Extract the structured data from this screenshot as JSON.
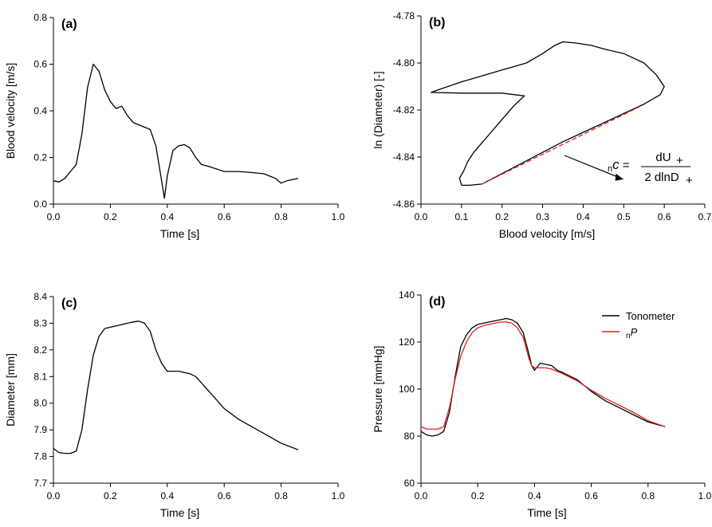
{
  "chart_data": [
    {
      "id": "a",
      "type": "line",
      "panel_label": "(a)",
      "xlabel": "Time [s]",
      "ylabel": "Blood velocity [m/s]",
      "xlim": [
        0,
        1.0
      ],
      "ylim": [
        0,
        0.8
      ],
      "xticks": [
        0.0,
        0.2,
        0.4,
        0.6,
        0.8,
        1.0
      ],
      "xtick_labels": [
        "0.0",
        "0.2",
        "0.4",
        "0.6",
        "0.8",
        "1.0"
      ],
      "yticks": [
        0.0,
        0.2,
        0.4,
        0.6,
        0.8
      ],
      "ytick_labels": [
        "0.0",
        "0.2",
        "0.4",
        "0.6",
        "0.8"
      ],
      "series": [
        {
          "color": "#000000",
          "x": [
            0.0,
            0.02,
            0.04,
            0.06,
            0.08,
            0.1,
            0.12,
            0.14,
            0.16,
            0.18,
            0.2,
            0.22,
            0.24,
            0.26,
            0.28,
            0.3,
            0.32,
            0.34,
            0.36,
            0.38,
            0.39,
            0.4,
            0.42,
            0.44,
            0.46,
            0.48,
            0.5,
            0.52,
            0.55,
            0.6,
            0.65,
            0.7,
            0.74,
            0.76,
            0.78,
            0.8,
            0.82,
            0.84,
            0.86
          ],
          "y": [
            0.1,
            0.095,
            0.11,
            0.14,
            0.17,
            0.3,
            0.5,
            0.6,
            0.57,
            0.49,
            0.44,
            0.41,
            0.42,
            0.38,
            0.35,
            0.34,
            0.33,
            0.32,
            0.25,
            0.1,
            0.025,
            0.12,
            0.23,
            0.25,
            0.255,
            0.24,
            0.2,
            0.17,
            0.16,
            0.14,
            0.14,
            0.135,
            0.13,
            0.12,
            0.11,
            0.09,
            0.1,
            0.105,
            0.11
          ]
        }
      ]
    },
    {
      "id": "b",
      "type": "line",
      "panel_label": "(b)",
      "xlabel": "Blood velocity [m/s]",
      "ylabel": "ln (Diameter) [-]",
      "xlim": [
        0,
        0.7
      ],
      "ylim": [
        -4.86,
        -4.78
      ],
      "xticks": [
        0.0,
        0.1,
        0.2,
        0.3,
        0.4,
        0.5,
        0.6,
        0.7
      ],
      "xtick_labels": [
        "0.0",
        "0.1",
        "0.2",
        "0.3",
        "0.4",
        "0.5",
        "0.6",
        "0.7"
      ],
      "yticks": [
        -4.86,
        -4.84,
        -4.82,
        -4.8,
        -4.78
      ],
      "ytick_labels": [
        "-4.86",
        "-4.84",
        "-4.82",
        "-4.80",
        "-4.78"
      ],
      "series": [
        {
          "color": "#000000",
          "x": [
            0.1,
            0.12,
            0.15,
            0.2,
            0.25,
            0.3,
            0.35,
            0.4,
            0.45,
            0.5,
            0.55,
            0.59,
            0.6,
            0.58,
            0.55,
            0.5,
            0.45,
            0.42,
            0.38,
            0.35,
            0.33,
            0.3,
            0.26,
            0.2,
            0.15,
            0.1,
            0.05,
            0.025,
            0.1,
            0.2,
            0.255,
            0.23,
            0.21,
            0.19,
            0.17,
            0.15,
            0.13,
            0.115,
            0.105,
            0.095,
            0.1
          ],
          "y": [
            -4.852,
            -4.852,
            -4.8515,
            -4.847,
            -4.8425,
            -4.838,
            -4.8335,
            -4.8295,
            -4.8255,
            -4.8215,
            -4.8175,
            -4.8135,
            -4.81,
            -4.805,
            -4.8,
            -4.796,
            -4.794,
            -4.7925,
            -4.7915,
            -4.791,
            -4.7925,
            -4.796,
            -4.8,
            -4.803,
            -4.8055,
            -4.808,
            -4.811,
            -4.8125,
            -4.8128,
            -4.8128,
            -4.814,
            -4.818,
            -4.822,
            -4.826,
            -4.83,
            -4.834,
            -4.838,
            -4.842,
            -4.846,
            -4.849,
            -4.852
          ]
        },
        {
          "color": "#e02020",
          "dashed": true,
          "x": [
            0.15,
            0.54
          ],
          "y": [
            -4.8515,
            -4.8185
          ]
        }
      ],
      "annotation": {
        "prefix_sub": "n",
        "lhs": "c",
        "numerator": "dU",
        "numerator_sub": "+",
        "denominator": "2 dlnD",
        "denominator_sub": "+",
        "arrow_tip_xy": [
          0.42,
          -4.846
        ]
      }
    },
    {
      "id": "c",
      "type": "line",
      "panel_label": "(c)",
      "xlabel": "Time [s]",
      "ylabel": "Diameter [mm]",
      "xlim": [
        0,
        1.0
      ],
      "ylim": [
        7.7,
        8.4
      ],
      "xticks": [
        0.0,
        0.2,
        0.4,
        0.6,
        0.8,
        1.0
      ],
      "xtick_labels": [
        "0.0",
        "0.2",
        "0.4",
        "0.6",
        "0.8",
        "1.0"
      ],
      "yticks": [
        7.7,
        7.8,
        7.9,
        8.0,
        8.1,
        8.2,
        8.3,
        8.4
      ],
      "ytick_labels": [
        "7.7",
        "7.8",
        "7.9",
        "8.0",
        "8.1",
        "8.2",
        "8.3",
        "8.4"
      ],
      "series": [
        {
          "color": "#000000",
          "x": [
            0.0,
            0.02,
            0.04,
            0.06,
            0.08,
            0.1,
            0.12,
            0.14,
            0.16,
            0.18,
            0.2,
            0.22,
            0.24,
            0.26,
            0.28,
            0.3,
            0.32,
            0.34,
            0.36,
            0.38,
            0.4,
            0.42,
            0.44,
            0.46,
            0.48,
            0.5,
            0.55,
            0.6,
            0.65,
            0.7,
            0.75,
            0.8,
            0.86
          ],
          "y": [
            7.83,
            7.815,
            7.812,
            7.812,
            7.82,
            7.9,
            8.05,
            8.18,
            8.25,
            8.28,
            8.285,
            8.29,
            8.295,
            8.3,
            8.305,
            8.308,
            8.3,
            8.27,
            8.2,
            8.15,
            8.12,
            8.12,
            8.12,
            8.115,
            8.11,
            8.1,
            8.04,
            7.98,
            7.94,
            7.91,
            7.88,
            7.85,
            7.825
          ]
        }
      ]
    },
    {
      "id": "d",
      "type": "line",
      "panel_label": "(d)",
      "xlabel": "Time [s]",
      "ylabel": "Pressure [mmHg]",
      "xlim": [
        0,
        1.0
      ],
      "ylim": [
        60,
        140
      ],
      "xticks": [
        0.0,
        0.2,
        0.4,
        0.6,
        0.8,
        1.0
      ],
      "xtick_labels": [
        "0.0",
        "0.2",
        "0.4",
        "0.6",
        "0.8",
        "1.0"
      ],
      "yticks": [
        60,
        80,
        100,
        120,
        140
      ],
      "ytick_labels": [
        "60",
        "80",
        "100",
        "120",
        "140"
      ],
      "legend": {
        "position": "top-right"
      },
      "series": [
        {
          "name": "Tonometer",
          "color": "#000000",
          "x": [
            0.0,
            0.02,
            0.04,
            0.06,
            0.08,
            0.1,
            0.12,
            0.14,
            0.16,
            0.18,
            0.2,
            0.22,
            0.24,
            0.26,
            0.28,
            0.3,
            0.32,
            0.34,
            0.36,
            0.38,
            0.39,
            0.4,
            0.42,
            0.44,
            0.46,
            0.48,
            0.5,
            0.55,
            0.6,
            0.65,
            0.7,
            0.75,
            0.8,
            0.86
          ],
          "y": [
            82,
            80.5,
            80,
            80.5,
            82,
            90,
            105,
            118,
            123,
            126,
            127.5,
            128,
            128.5,
            129,
            129.5,
            130,
            129.5,
            128,
            124,
            115,
            110,
            108,
            111,
            110.5,
            110,
            108,
            107,
            104,
            99,
            95,
            92,
            89,
            86,
            84
          ]
        },
        {
          "name": "P",
          "name_prefix_sub": "n",
          "color": "#e02020",
          "x": [
            0.0,
            0.02,
            0.04,
            0.06,
            0.08,
            0.1,
            0.12,
            0.14,
            0.16,
            0.18,
            0.2,
            0.22,
            0.24,
            0.26,
            0.28,
            0.3,
            0.32,
            0.34,
            0.36,
            0.38,
            0.39,
            0.4,
            0.42,
            0.44,
            0.46,
            0.48,
            0.5,
            0.55,
            0.6,
            0.65,
            0.7,
            0.75,
            0.8,
            0.86
          ],
          "y": [
            84,
            83,
            83,
            83,
            84,
            92,
            104,
            114,
            120,
            124,
            126,
            127,
            127.5,
            128,
            128.5,
            128.5,
            128,
            126,
            122,
            113,
            110,
            109,
            109,
            109,
            108.5,
            107.5,
            106.5,
            103.5,
            99.5,
            96,
            93,
            90,
            86.5,
            84
          ]
        }
      ]
    }
  ]
}
